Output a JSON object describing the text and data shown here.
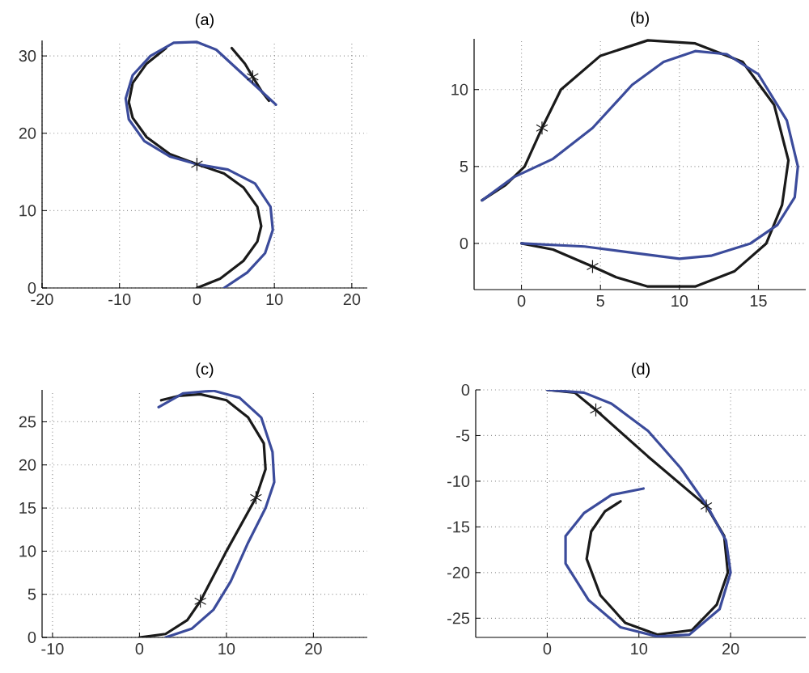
{
  "chart_data": [
    {
      "type": "line",
      "title": "(a)",
      "xlim": [
        -20,
        22
      ],
      "ylim": [
        0,
        32
      ],
      "xticks": [
        -20,
        -10,
        0,
        10,
        20
      ],
      "yticks": [
        0,
        10,
        20,
        30
      ],
      "grid": true,
      "series": [
        {
          "color": "#1a1a1a",
          "x": [
            0,
            3,
            6,
            7.8,
            8.3,
            7.8,
            6,
            3.5,
            0,
            -3.5,
            -6.5,
            -8.3,
            -8.8,
            -8.3,
            -6.5,
            -4,
            -1,
            2,
            4.5,
            6.2,
            7.2,
            8.3,
            9.3
          ],
          "values": [
            0,
            1.2,
            3.5,
            6,
            8,
            10.5,
            13,
            14.8,
            16,
            17.3,
            19.5,
            22,
            24,
            26.5,
            29,
            31,
            null,
            null,
            31,
            29,
            27.3,
            25.5,
            24.2
          ]
        },
        {
          "color": "#3b4b9b",
          "x": [
            3.5,
            6.5,
            8.8,
            9.8,
            9.5,
            7.5,
            4,
            0,
            -3.5,
            -6.8,
            -8.8,
            -9.2,
            -8.3,
            -6,
            -3,
            0,
            2.5,
            5,
            7.5,
            10.2
          ],
          "values": [
            0,
            2,
            4.5,
            7.5,
            10.5,
            13.5,
            15.3,
            16,
            17,
            19,
            21.8,
            24.5,
            27.5,
            30,
            31.7,
            31.8,
            30.8,
            28.5,
            26.2,
            23.7
          ]
        },
        {
          "type": "scatter",
          "marker": "cross",
          "color": "#1a1a1a",
          "x": [
            0,
            7.2
          ],
          "values": [
            16,
            27.3
          ]
        }
      ]
    },
    {
      "type": "line",
      "title": "(b)",
      "xlim": [
        -3,
        18
      ],
      "ylim": [
        -3,
        13.3
      ],
      "xticks": [
        0,
        5,
        10,
        15
      ],
      "yticks": [
        0,
        5,
        10
      ],
      "grid": true,
      "series": [
        {
          "color": "#1a1a1a",
          "x": [
            -2.5,
            -1,
            0.2,
            1.3,
            2.5,
            5,
            8,
            11,
            14,
            16,
            16.9,
            16.5,
            15.5,
            13.5,
            11,
            8,
            6,
            4.5,
            2,
            0
          ],
          "values": [
            2.8,
            3.8,
            5,
            7.5,
            10,
            12.2,
            13.2,
            13,
            11.8,
            9,
            5.4,
            2.5,
            0,
            -1.8,
            -2.8,
            -2.8,
            -2.2,
            -1.5,
            -0.4,
            0
          ]
        },
        {
          "color": "#3b4b9b",
          "x": [
            -2.5,
            -0.5,
            2,
            4.5,
            7,
            9,
            11,
            13,
            15,
            16.8,
            17.5,
            17.3,
            16.2,
            14.5,
            12,
            10,
            7,
            4,
            0
          ],
          "values": [
            2.8,
            4.3,
            5.5,
            7.5,
            10.3,
            11.8,
            12.5,
            12.3,
            11,
            8,
            5,
            3,
            1.2,
            0,
            -0.8,
            -1,
            -0.6,
            -0.2,
            0
          ]
        },
        {
          "type": "scatter",
          "marker": "cross",
          "color": "#1a1a1a",
          "x": [
            1.3,
            4.5
          ],
          "values": [
            7.5,
            -1.5
          ]
        }
      ]
    },
    {
      "type": "line",
      "title": "(c)",
      "xlim": [
        -11.2,
        26.2
      ],
      "ylim": [
        0,
        28.7
      ],
      "xticks": [
        -10,
        0,
        10,
        20
      ],
      "yticks": [
        0,
        5,
        10,
        15,
        20,
        25
      ],
      "grid": true,
      "series": [
        {
          "color": "#1a1a1a",
          "x": [
            0,
            3,
            5.5,
            7,
            10,
            13.4,
            14.5,
            14.3,
            12.5,
            10,
            7,
            4.5,
            2.5
          ],
          "values": [
            0,
            0.4,
            2,
            4.2,
            10,
            16.2,
            19.5,
            22.5,
            25.5,
            27.5,
            28.2,
            28,
            27.5
          ]
        },
        {
          "color": "#3b4b9b",
          "x": [
            2.2,
            5,
            8.5,
            11.5,
            14,
            15.3,
            15.5,
            14.5,
            12.5,
            10.5,
            8.5,
            6,
            3
          ],
          "values": [
            26.7,
            28.3,
            28.6,
            27.8,
            25.5,
            21.5,
            18,
            15,
            11,
            6.5,
            3.2,
            1,
            0
          ]
        },
        {
          "type": "scatter",
          "marker": "cross",
          "color": "#1a1a1a",
          "x": [
            7,
            13.4
          ],
          "values": [
            4.2,
            16.2
          ]
        }
      ]
    },
    {
      "type": "line",
      "title": "(d)",
      "xlim": [
        -7.8,
        28.2
      ],
      "ylim": [
        -27.1,
        0
      ],
      "xticks": [
        0,
        10,
        20
      ],
      "yticks": [
        -25,
        -20,
        -15,
        -10,
        -5,
        0
      ],
      "grid": true,
      "series": [
        {
          "color": "#1a1a1a",
          "x": [
            0,
            3,
            5.3,
            11,
            17.35,
            19.3,
            19.7,
            18.5,
            15.8,
            12,
            8.5,
            5.8,
            4.3,
            4.8,
            6.3,
            8
          ],
          "values": [
            0,
            -0.3,
            -2.2,
            -7.3,
            -12.7,
            -16,
            -20,
            -23.5,
            -26.3,
            -26.8,
            -25.5,
            -22.5,
            -18.5,
            -15.5,
            -13.3,
            -12.2
          ]
        },
        {
          "color": "#3b4b9b",
          "x": [
            0,
            4,
            7,
            11,
            14.5,
            17.5,
            19.5,
            20,
            18.8,
            15.5,
            12,
            8,
            4.5,
            2,
            2,
            4,
            7,
            10.5
          ],
          "values": [
            0,
            -0.3,
            -1.5,
            -4.5,
            -8.5,
            -12.8,
            -16.5,
            -20,
            -24,
            -26.8,
            -27,
            -26,
            -23,
            -19,
            -16,
            -13.5,
            -11.5,
            -10.8
          ]
        },
        {
          "type": "scatter",
          "marker": "cross",
          "color": "#1a1a1a",
          "x": [
            5.3,
            17.35
          ],
          "values": [
            -2.2,
            -12.7
          ]
        }
      ]
    }
  ]
}
